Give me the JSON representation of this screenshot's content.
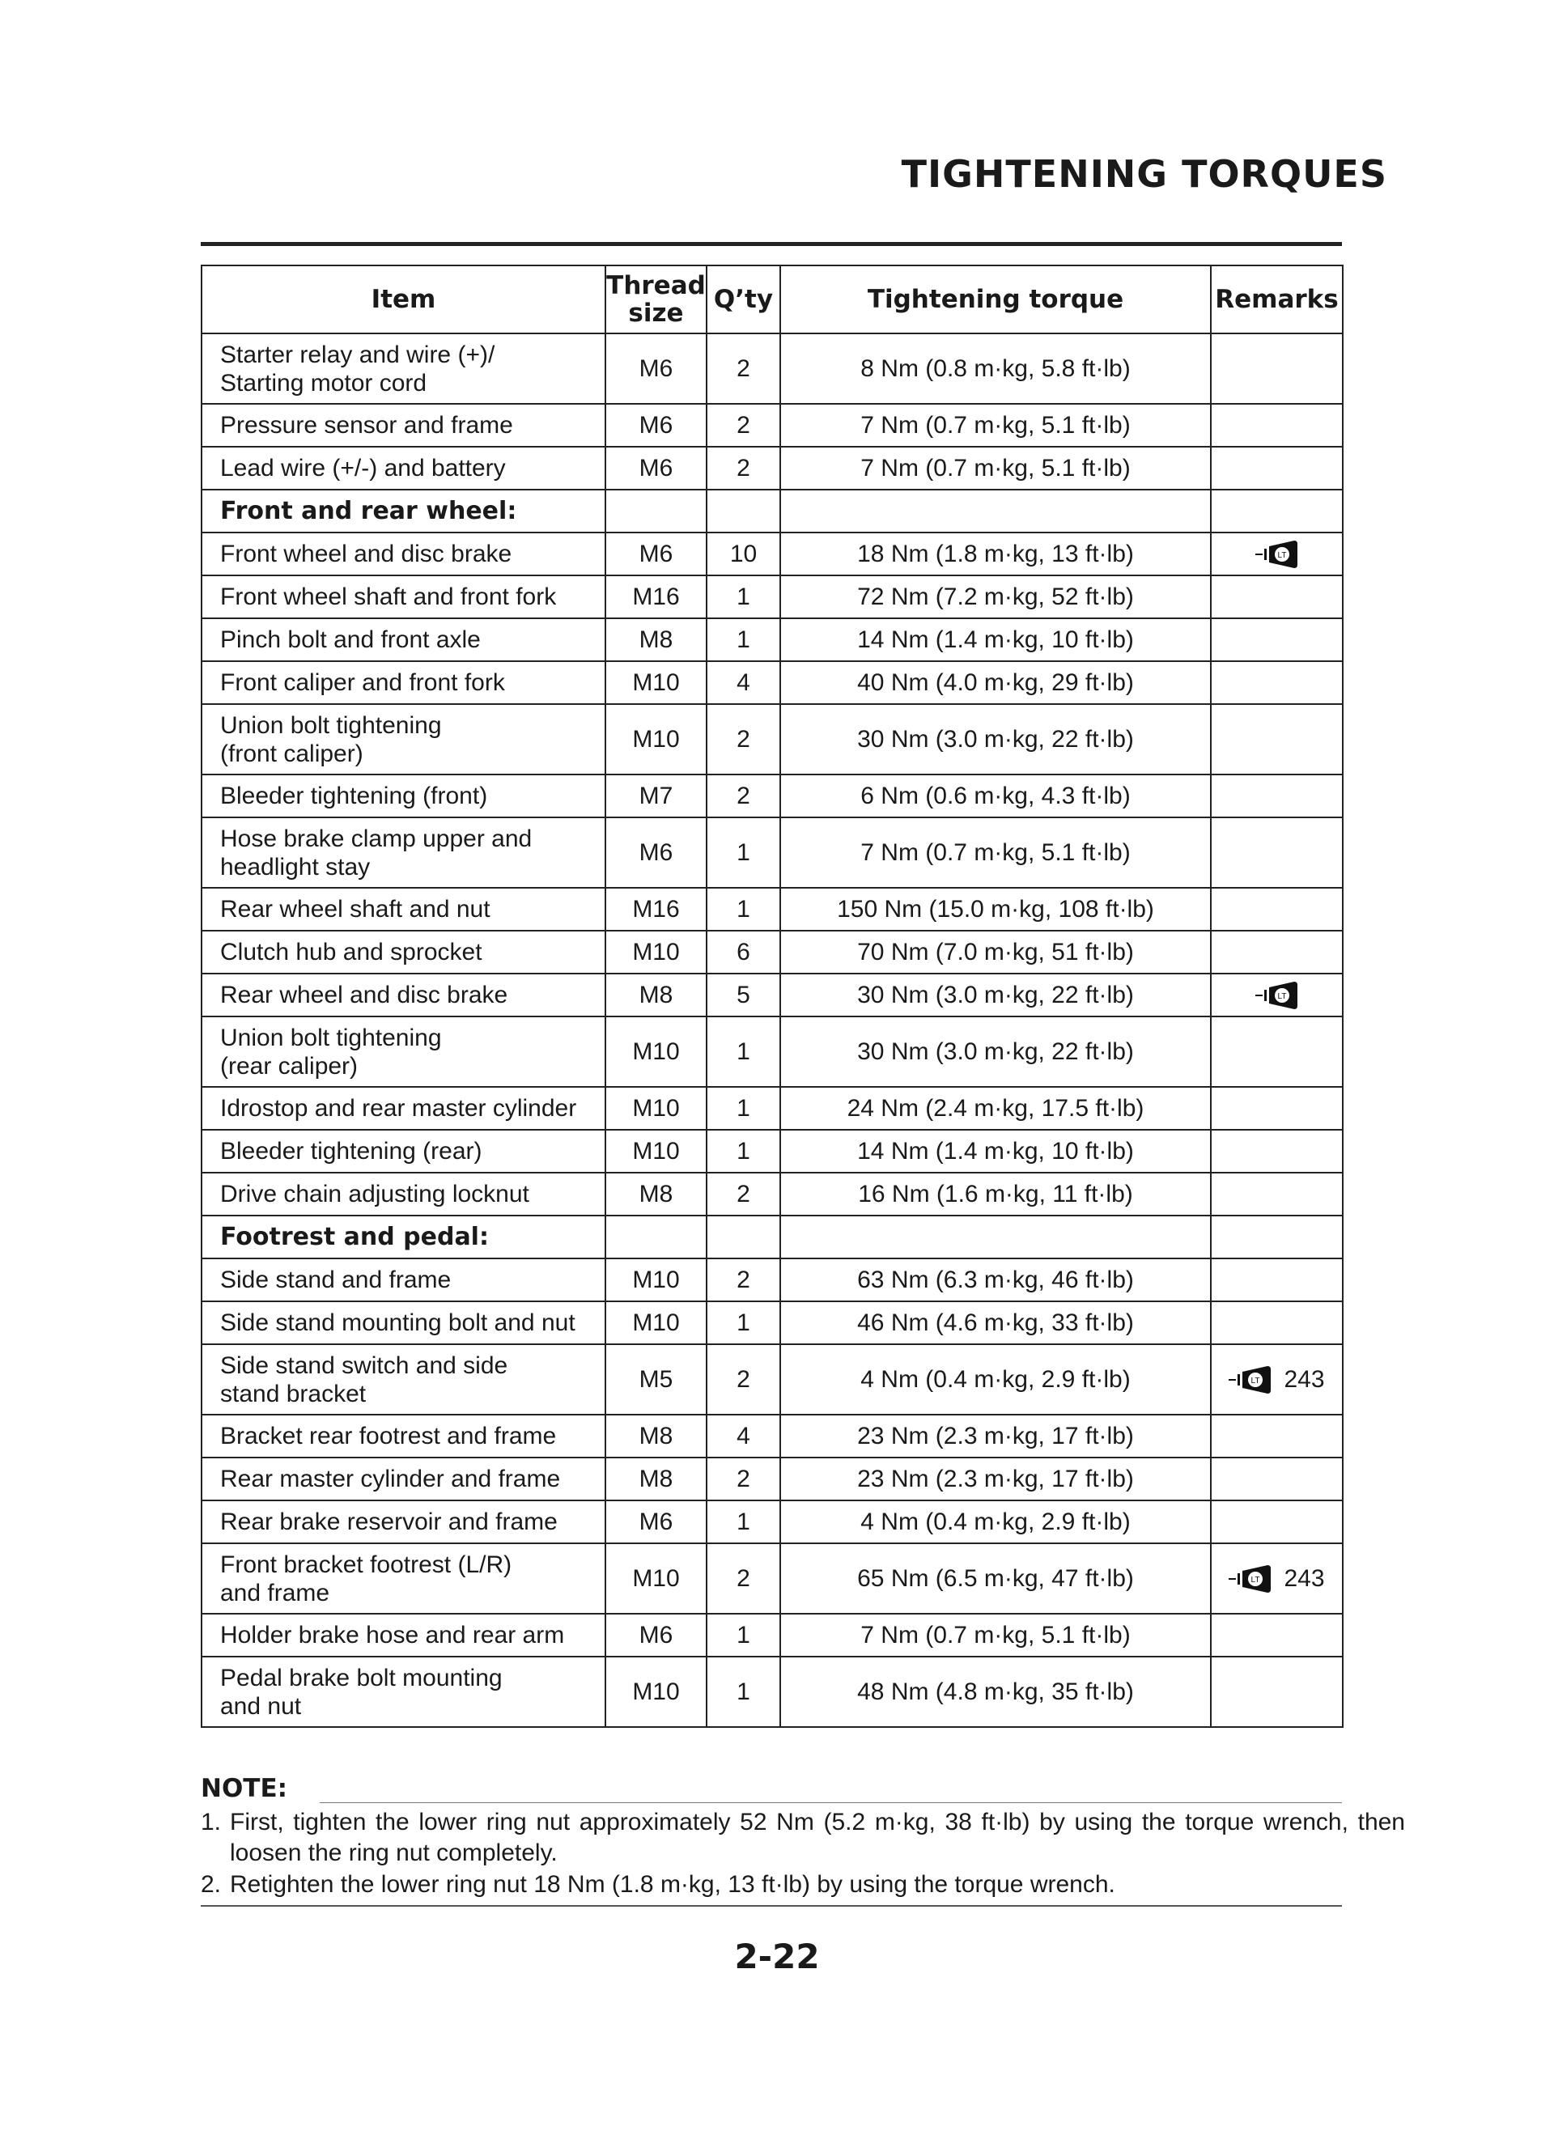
{
  "title": "TIGHTENING TORQUES",
  "table": {
    "headers": {
      "item": "Item",
      "thread_line1": "Thread",
      "thread_line2": "size",
      "qty": "Q’ty",
      "torque": "Tightening torque",
      "remarks": "Remarks"
    },
    "rows": [
      {
        "item": "Starter relay and wire (+)/\nStarting motor cord",
        "thread": "M6",
        "qty": "2",
        "torque": "8 Nm (0.8 m·kg, 5.8 ft·lb)",
        "remark_icon": "",
        "remark_page": ""
      },
      {
        "item": "Pressure sensor and frame",
        "thread": "M6",
        "qty": "2",
        "torque": "7 Nm (0.7 m·kg, 5.1 ft·lb)",
        "remark_icon": "",
        "remark_page": ""
      },
      {
        "item": "Lead wire (+/-) and battery",
        "thread": "M6",
        "qty": "2",
        "torque": "7 Nm (0.7 m·kg, 5.1 ft·lb)",
        "remark_icon": "",
        "remark_page": ""
      },
      {
        "section": true,
        "item": "Front and rear wheel:",
        "thread": "",
        "qty": "",
        "torque": "",
        "remark_icon": "",
        "remark_page": ""
      },
      {
        "item": "Front wheel and disc brake",
        "thread": "M6",
        "qty": "10",
        "torque": "18 Nm (1.8 m·kg, 13 ft·lb)",
        "remark_icon": "loctite-icon",
        "remark_page": ""
      },
      {
        "item": "Front wheel shaft and front fork",
        "thread": "M16",
        "qty": "1",
        "torque": "72 Nm (7.2 m·kg, 52 ft·lb)",
        "remark_icon": "",
        "remark_page": ""
      },
      {
        "item": "Pinch bolt and front axle",
        "thread": "M8",
        "qty": "1",
        "torque": "14 Nm (1.4 m·kg, 10 ft·lb)",
        "remark_icon": "",
        "remark_page": ""
      },
      {
        "item": "Front caliper and front fork",
        "thread": "M10",
        "qty": "4",
        "torque": "40 Nm (4.0 m·kg, 29 ft·lb)",
        "remark_icon": "",
        "remark_page": ""
      },
      {
        "item": "Union bolt tightening\n(front caliper)",
        "thread": "M10",
        "qty": "2",
        "torque": "30 Nm (3.0 m·kg, 22 ft·lb)",
        "remark_icon": "",
        "remark_page": ""
      },
      {
        "item": "Bleeder tightening (front)",
        "thread": "M7",
        "qty": "2",
        "torque": "6 Nm (0.6 m·kg, 4.3 ft·lb)",
        "remark_icon": "",
        "remark_page": ""
      },
      {
        "item": "Hose brake clamp upper and\nheadlight stay",
        "thread": "M6",
        "qty": "1",
        "torque": "7 Nm (0.7 m·kg, 5.1 ft·lb)",
        "remark_icon": "",
        "remark_page": ""
      },
      {
        "item": "Rear wheel shaft and nut",
        "thread": "M16",
        "qty": "1",
        "torque": "150 Nm (15.0 m·kg, 108 ft·lb)",
        "remark_icon": "",
        "remark_page": ""
      },
      {
        "item": "Clutch hub and sprocket",
        "thread": "M10",
        "qty": "6",
        "torque": "70 Nm (7.0 m·kg, 51 ft·lb)",
        "remark_icon": "",
        "remark_page": ""
      },
      {
        "item": "Rear wheel and disc brake",
        "thread": "M8",
        "qty": "5",
        "torque": "30 Nm (3.0 m·kg, 22 ft·lb)",
        "remark_icon": "loctite-icon",
        "remark_page": ""
      },
      {
        "item": "Union bolt tightening\n(rear caliper)",
        "thread": "M10",
        "qty": "1",
        "torque": "30 Nm (3.0 m·kg, 22 ft·lb)",
        "remark_icon": "",
        "remark_page": ""
      },
      {
        "item": "Idrostop and rear master cylinder",
        "thread": "M10",
        "qty": "1",
        "torque": "24 Nm (2.4 m·kg, 17.5 ft·lb)",
        "remark_icon": "",
        "remark_page": ""
      },
      {
        "item": "Bleeder tightening (rear)",
        "thread": "M10",
        "qty": "1",
        "torque": "14 Nm (1.4 m·kg, 10 ft·lb)",
        "remark_icon": "",
        "remark_page": ""
      },
      {
        "item": "Drive chain adjusting locknut",
        "thread": "M8",
        "qty": "2",
        "torque": "16 Nm (1.6 m·kg, 11 ft·lb)",
        "remark_icon": "",
        "remark_page": ""
      },
      {
        "section": true,
        "item": "Footrest and pedal:",
        "thread": "",
        "qty": "",
        "torque": "",
        "remark_icon": "",
        "remark_page": ""
      },
      {
        "item": "Side stand and frame",
        "thread": "M10",
        "qty": "2",
        "torque": "63 Nm (6.3 m·kg, 46 ft·lb)",
        "remark_icon": "",
        "remark_page": ""
      },
      {
        "item": "Side stand mounting bolt and nut",
        "thread": "M10",
        "qty": "1",
        "torque": "46 Nm (4.6 m·kg, 33 ft·lb)",
        "remark_icon": "",
        "remark_page": ""
      },
      {
        "item": "Side stand switch and side\nstand bracket",
        "thread": "M5",
        "qty": "2",
        "torque": "4 Nm (0.4 m·kg, 2.9 ft·lb)",
        "remark_icon": "loctite-icon",
        "remark_page": "243"
      },
      {
        "item": "Bracket rear footrest and frame",
        "thread": "M8",
        "qty": "4",
        "torque": "23 Nm (2.3 m·kg, 17 ft·lb)",
        "remark_icon": "",
        "remark_page": ""
      },
      {
        "item": "Rear master cylinder and frame",
        "thread": "M8",
        "qty": "2",
        "torque": "23 Nm (2.3 m·kg, 17 ft·lb)",
        "remark_icon": "",
        "remark_page": ""
      },
      {
        "item": "Rear brake reservoir and frame",
        "thread": "M6",
        "qty": "1",
        "torque": "4 Nm (0.4 m·kg, 2.9 ft·lb)",
        "remark_icon": "",
        "remark_page": ""
      },
      {
        "item": "Front bracket footrest (L/R)\nand frame",
        "thread": "M10",
        "qty": "2",
        "torque": "65 Nm (6.5 m·kg, 47 ft·lb)",
        "remark_icon": "loctite-icon",
        "remark_page": "243"
      },
      {
        "item": "Holder brake hose and rear arm",
        "thread": "M6",
        "qty": "1",
        "torque": "7 Nm (0.7 m·kg, 5.1 ft·lb)",
        "remark_icon": "",
        "remark_page": ""
      },
      {
        "item": "Pedal brake bolt mounting\nand nut",
        "thread": "M10",
        "qty": "1",
        "torque": "48 Nm (4.8 m·kg, 35 ft·lb)",
        "remark_icon": "",
        "remark_page": ""
      }
    ]
  },
  "loctite_label": "LT",
  "note": {
    "heading": "NOTE:",
    "items": [
      {
        "num": "1.",
        "text": "First, tighten the lower ring nut approximately 52 Nm (5.2 m·kg, 38 ft·lb) by using the torque wrench, then loosen the ring nut completely."
      },
      {
        "num": "2.",
        "text": "Retighten the lower ring nut 18 Nm (1.8 m·kg, 13 ft·lb) by using the torque wrench."
      }
    ]
  },
  "page_number": "2-22"
}
